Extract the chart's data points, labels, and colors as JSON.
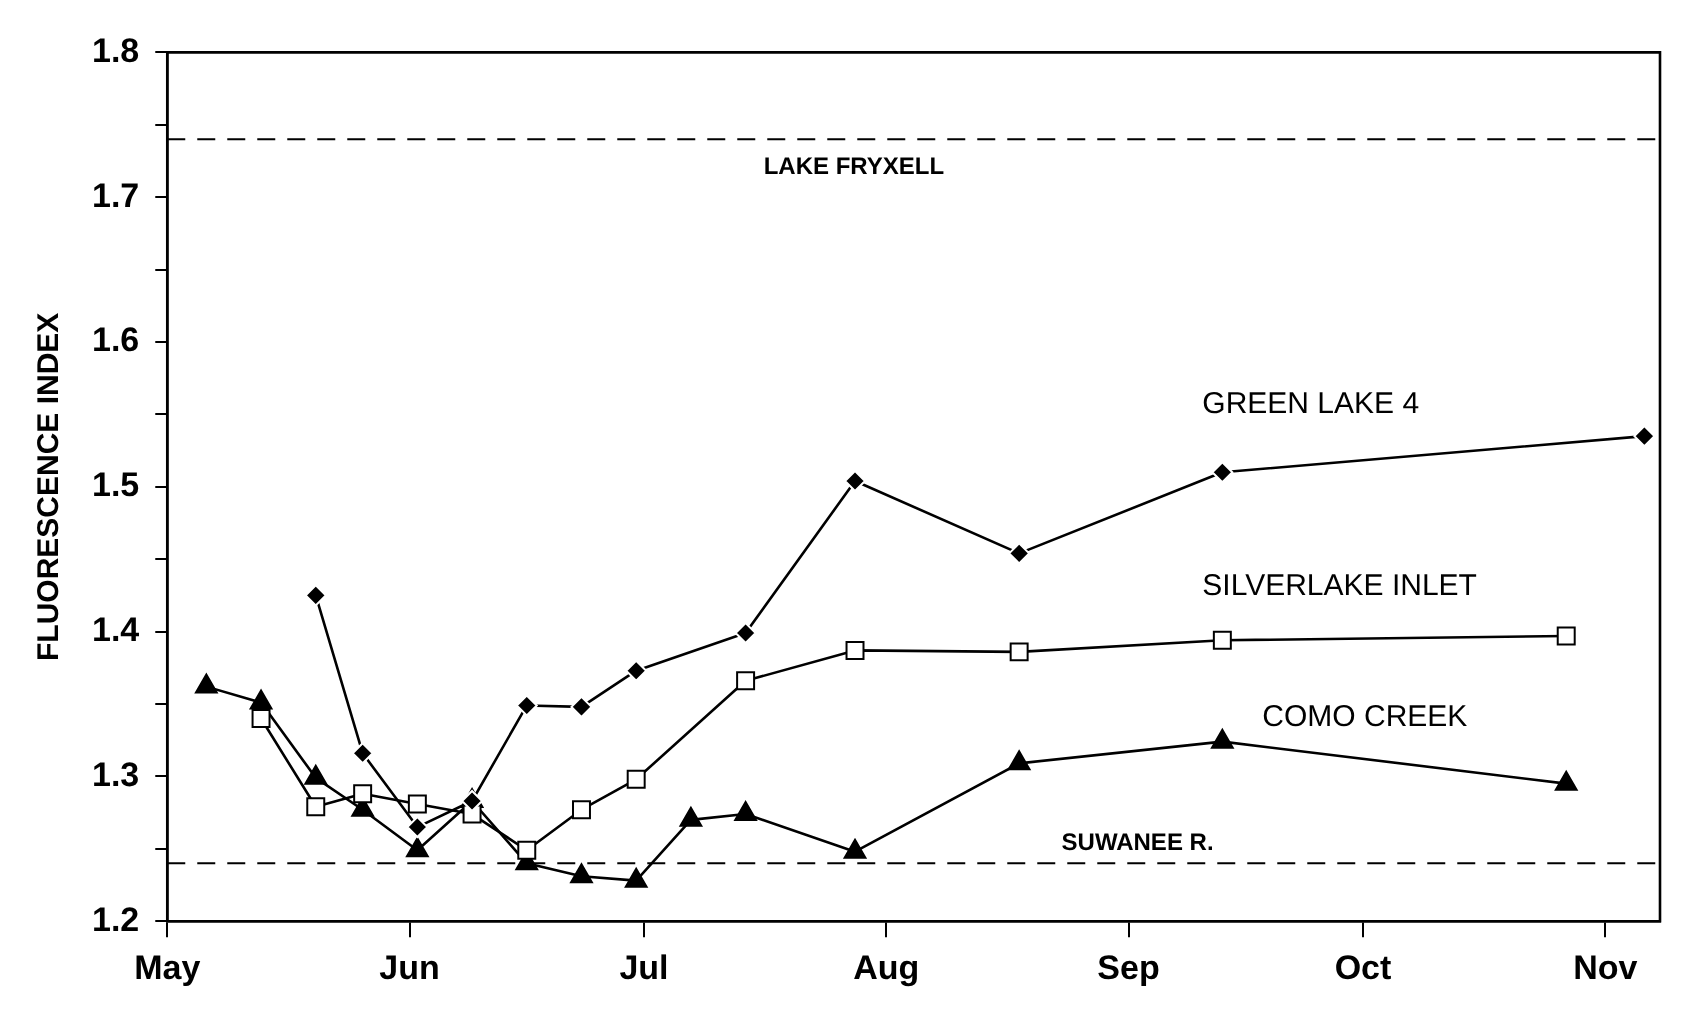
{
  "chart_data": {
    "type": "line",
    "ylabel": "FLUORESCENCE INDEX",
    "xlim": [
      "--05-01",
      "--11-08"
    ],
    "xticks": [
      {
        "value": "--05-01",
        "label": "May"
      },
      {
        "value": "--06-01",
        "label": "Jun"
      },
      {
        "value": "--07-01",
        "label": "Jul"
      },
      {
        "value": "--08-01",
        "label": "Aug"
      },
      {
        "value": "--09-01",
        "label": "Sep"
      },
      {
        "value": "--10-01",
        "label": "Oct"
      },
      {
        "value": "--11-01",
        "label": "Nov"
      }
    ],
    "ylim": [
      1.2,
      1.8
    ],
    "yticks": [
      1.2,
      {
        "value": 1.25,
        "label": null
      },
      1.3,
      {
        "value": 1.35,
        "label": null
      },
      1.4,
      {
        "value": 1.45,
        "label": null
      },
      1.5,
      {
        "value": 1.55,
        "label": null
      },
      1.6,
      {
        "value": 1.65,
        "label": null
      },
      1.7,
      {
        "value": 1.75,
        "label": null
      },
      1.8
    ],
    "grid": false,
    "legend": false,
    "line_style": "solid",
    "series": [
      {
        "name": "GREEN LAKE 4",
        "color": "#000000",
        "marker": "diamond",
        "x": [
          "--05-20",
          "--05-26",
          "--06-02",
          "--06-09",
          "--06-16",
          "--06-23",
          "--06-30",
          "--07-14",
          "--07-28",
          "--08-18",
          "--09-13",
          "--11-06"
        ],
        "values": [
          1.425,
          1.316,
          1.265,
          1.283,
          1.349,
          1.348,
          1.373,
          1.399,
          1.504,
          1.454,
          1.51,
          1.535
        ]
      },
      {
        "name": "SILVERLAKE INLET",
        "color": "#000000",
        "marker": "square",
        "x": [
          "--05-13",
          "--05-20",
          "--05-26",
          "--06-02",
          "--06-09",
          "--06-16",
          "--06-23",
          "--06-30",
          "--07-14",
          "--07-28",
          "--08-18",
          "--09-13",
          "--10-27"
        ],
        "values": [
          1.34,
          1.279,
          1.288,
          1.281,
          1.274,
          1.249,
          1.277,
          1.298,
          1.366,
          1.387,
          1.386,
          1.394,
          1.397
        ]
      },
      {
        "name": "COMO CREEK",
        "color": "#000000",
        "marker": "triangle",
        "x": [
          "--05-06",
          "--05-13",
          "--05-20",
          "--05-26",
          "--06-02",
          "--06-09",
          "--06-16",
          "--06-23",
          "--06-30",
          "--07-07",
          "--07-14",
          "--07-28",
          "--08-18",
          "--09-13",
          "--10-27"
        ],
        "values": [
          1.362,
          1.351,
          1.299,
          1.277,
          1.249,
          1.283,
          1.24,
          1.231,
          1.228,
          1.27,
          1.274,
          1.248,
          1.309,
          1.324,
          1.295
        ]
      }
    ],
    "ref_lines": [
      {
        "axis": "y",
        "value": 1.74,
        "label": "LAKE FRYXELL",
        "line_style": "dashed",
        "color": "#000000"
      },
      {
        "axis": "y",
        "value": 1.24,
        "label": "SUWANEE R.",
        "line_style": "dashed",
        "color": "#000000"
      }
    ]
  }
}
